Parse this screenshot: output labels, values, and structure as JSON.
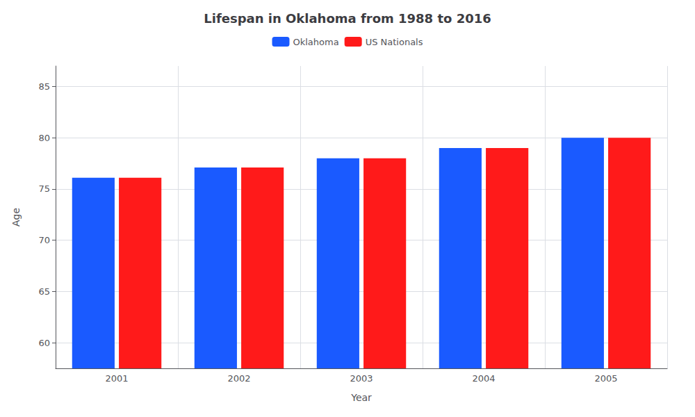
{
  "chart_data": {
    "type": "bar",
    "title": "Lifespan in Oklahoma from 1988 to 2016",
    "x_label": "Year",
    "y_label": "Age",
    "categories": [
      "2001",
      "2002",
      "2003",
      "2004",
      "2005"
    ],
    "series": [
      {
        "name": "Oklahoma",
        "color": "#1a5aff",
        "values": [
          76.1,
          77.1,
          78.0,
          79.0,
          80.0
        ]
      },
      {
        "name": "US Nationals",
        "color": "#ff1a1a",
        "values": [
          76.1,
          77.1,
          78.0,
          79.0,
          80.0
        ]
      }
    ],
    "ylim": [
      57.5,
      87
    ],
    "yticks": [
      60,
      65,
      70,
      75,
      80,
      85
    ],
    "grid": true,
    "legend": "top"
  }
}
